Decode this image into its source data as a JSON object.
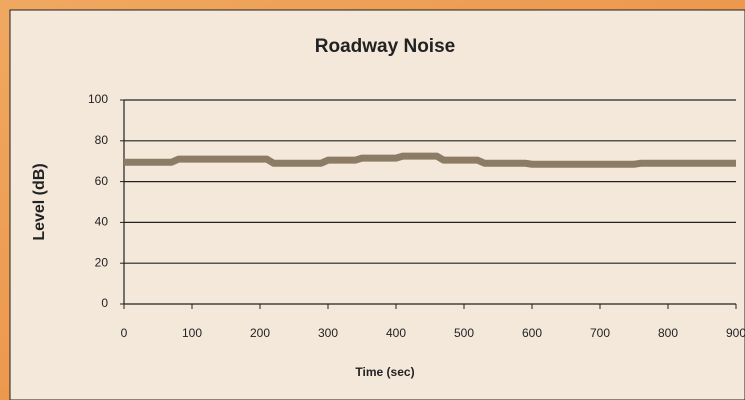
{
  "chart_data": {
    "type": "line",
    "title": "Roadway Noise",
    "x_label": "Time (sec)",
    "y_label": "Level (dB)",
    "series": [
      {
        "name": "Level",
        "color": "#8c7c66",
        "x": [
          0,
          70,
          80,
          210,
          220,
          290,
          300,
          340,
          350,
          400,
          410,
          460,
          470,
          520,
          530,
          590,
          600,
          750,
          760,
          900
        ],
        "values": [
          69.5,
          69.5,
          71,
          71,
          69,
          69,
          70.5,
          70.5,
          71.5,
          71.5,
          72.5,
          72.5,
          70.5,
          70.5,
          69,
          69,
          68.5,
          68.5,
          69,
          69
        ]
      }
    ],
    "xlim": [
      0,
      900
    ],
    "xticks": [
      0,
      100,
      200,
      300,
      400,
      500,
      600,
      700,
      800,
      900
    ],
    "ylim": [
      0,
      100
    ],
    "yticks": [
      0,
      20,
      40,
      60,
      80,
      100
    ],
    "grid": true
  }
}
